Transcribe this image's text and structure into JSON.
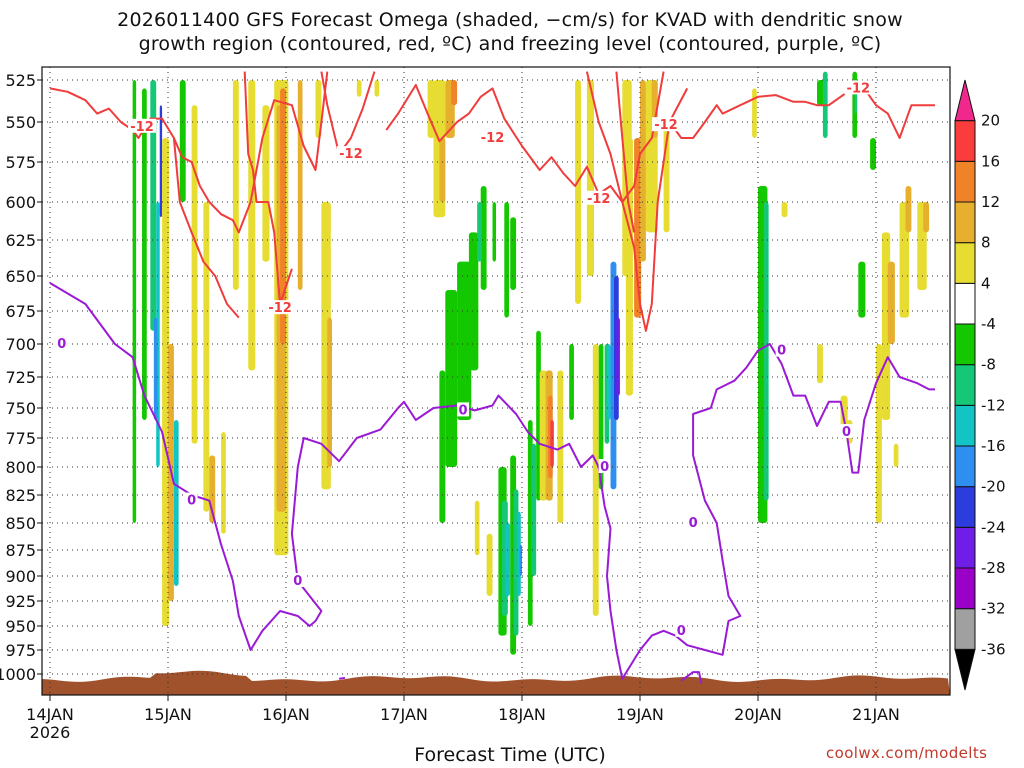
{
  "title_lines": [
    "2026011400 GFS Forecast Omega (shaded, −cm/s) for KVAD with dendritic snow",
    "growth region (contoured, red, ºC) and freezing level (contoured, purple, ºC)"
  ],
  "credit": "coolwx.com/modelts",
  "chart_data": {
    "type": "heatmap",
    "title": "2026011400 GFS Forecast Omega (shaded, −cm/s) for KVAD with dendritic snow growth region (contoured, red, ºC) and freezing level (contoured, purple, ºC)",
    "xlabel": "Forecast Time (UTC)",
    "ylabel": "",
    "x_ticks": [
      {
        "day": 0,
        "label": "14JAN",
        "label2": "2026"
      },
      {
        "day": 1,
        "label": "15JAN"
      },
      {
        "day": 2,
        "label": "16JAN"
      },
      {
        "day": 3,
        "label": "17JAN"
      },
      {
        "day": 4,
        "label": "18JAN"
      },
      {
        "day": 5,
        "label": "19JAN"
      },
      {
        "day": 6,
        "label": "20JAN"
      },
      {
        "day": 7,
        "label": "21JAN"
      }
    ],
    "xlim_days": [
      0,
      7.5
    ],
    "y_ticks": [
      525,
      550,
      575,
      600,
      625,
      650,
      675,
      700,
      725,
      750,
      775,
      800,
      825,
      850,
      875,
      900,
      925,
      950,
      975,
      1000
    ],
    "ylim_hpa": [
      515,
      1010
    ],
    "grid": true,
    "colorbar": {
      "levels": [
        -36,
        -32,
        -28,
        -24,
        -20,
        -16,
        -12,
        -8,
        -4,
        4,
        8,
        12,
        16,
        20
      ],
      "colors": [
        "#000000",
        "#a0a0a0",
        "#9a00c8",
        "#6e1ee6",
        "#2d3cdc",
        "#2f8ff0",
        "#14c4c4",
        "#14c878",
        "#14c800",
        "#ffffff",
        "#e6dc32",
        "#e6af2d",
        "#f08228",
        "#fa3c3c",
        "#f0288c"
      ]
    },
    "freezing_level": {
      "color": "#9a1ad6",
      "label": "0",
      "points": [
        [
          0,
          655
        ],
        [
          0.3,
          670
        ],
        [
          0.55,
          700
        ],
        [
          0.7,
          710
        ],
        [
          0.8,
          740
        ],
        [
          0.95,
          770
        ],
        [
          1.05,
          815
        ],
        [
          1.2,
          825
        ],
        [
          1.35,
          830
        ],
        [
          1.45,
          870
        ],
        [
          1.55,
          905
        ],
        [
          1.6,
          940
        ],
        [
          1.7,
          975
        ],
        [
          1.8,
          955
        ],
        [
          1.95,
          935
        ],
        [
          2.1,
          940
        ],
        [
          2.2,
          950
        ],
        [
          2.25,
          945
        ],
        [
          2.3,
          935
        ],
        [
          2.1,
          905
        ],
        [
          2.05,
          860
        ],
        [
          2.1,
          800
        ],
        [
          2.15,
          775
        ],
        [
          2.3,
          780
        ],
        [
          2.45,
          795
        ],
        [
          2.6,
          775
        ],
        [
          2.8,
          768
        ],
        [
          2.95,
          750
        ],
        [
          3.0,
          745
        ],
        [
          3.1,
          760
        ],
        [
          3.25,
          750
        ],
        [
          3.45,
          748
        ],
        [
          3.6,
          752
        ],
        [
          3.75,
          748
        ],
        [
          3.8,
          740
        ],
        [
          3.95,
          755
        ],
        [
          4.05,
          770
        ],
        [
          4.15,
          780
        ],
        [
          4.3,
          785
        ],
        [
          4.4,
          780
        ],
        [
          4.5,
          800
        ],
        [
          4.6,
          790
        ],
        [
          4.65,
          800
        ],
        [
          4.7,
          835
        ],
        [
          4.75,
          855
        ],
        [
          4.72,
          900
        ],
        [
          4.75,
          935
        ],
        [
          4.8,
          975
        ],
        [
          4.85,
          1005
        ],
        [
          4.95,
          985
        ],
        [
          5.0,
          975
        ],
        [
          5.1,
          960
        ],
        [
          5.2,
          955
        ],
        [
          5.3,
          960
        ],
        [
          5.4,
          970
        ],
        [
          5.55,
          975
        ],
        [
          5.7,
          980
        ],
        [
          5.75,
          945
        ],
        [
          5.85,
          940
        ],
        [
          5.75,
          920
        ],
        [
          5.7,
          885
        ],
        [
          5.65,
          850
        ],
        [
          5.55,
          830
        ],
        [
          5.45,
          790
        ],
        [
          5.45,
          755
        ],
        [
          5.6,
          750
        ],
        [
          5.65,
          735
        ],
        [
          5.8,
          728
        ],
        [
          5.9,
          718
        ],
        [
          6.0,
          705
        ],
        [
          6.1,
          700
        ],
        [
          6.2,
          715
        ],
        [
          6.3,
          740
        ],
        [
          6.4,
          740
        ],
        [
          6.5,
          765
        ],
        [
          6.6,
          745
        ],
        [
          6.7,
          745
        ],
        [
          6.75,
          770
        ],
        [
          6.8,
          805
        ],
        [
          6.85,
          805
        ],
        [
          6.9,
          760
        ],
        [
          7.0,
          730
        ],
        [
          7.1,
          710
        ],
        [
          7.2,
          725
        ],
        [
          7.35,
          730
        ],
        [
          7.45,
          735
        ],
        [
          7.5,
          735
        ]
      ],
      "extra_segments": [
        [
          [
            2.45,
            1005
          ],
          [
            2.5,
            1004
          ]
        ],
        [
          [
            5.35,
            1007
          ],
          [
            5.45,
            998
          ],
          [
            5.5,
            998
          ],
          [
            5.52,
            1010
          ]
        ]
      ],
      "labels_at": [
        [
          0.1,
          700
        ],
        [
          1.2,
          830
        ],
        [
          2.1,
          905
        ],
        [
          3.5,
          752
        ],
        [
          4.7,
          800
        ],
        [
          5.45,
          850
        ],
        [
          5.35,
          955
        ],
        [
          6.2,
          705
        ],
        [
          6.75,
          770
        ]
      ]
    },
    "dendritic_contour": {
      "color": "#f03c3c",
      "label": "-12",
      "segments": [
        [
          [
            0,
            530
          ],
          [
            0.15,
            532
          ],
          [
            0.3,
            537
          ],
          [
            0.4,
            545
          ],
          [
            0.5,
            542
          ],
          [
            0.6,
            550
          ],
          [
            0.7,
            555
          ],
          [
            0.75,
            560
          ],
          [
            0.85,
            548
          ],
          [
            0.95,
            548
          ],
          [
            1.05,
            560
          ],
          [
            1.12,
            572
          ],
          [
            1.2,
            575
          ],
          [
            1.27,
            590
          ],
          [
            1.35,
            600
          ],
          [
            1.45,
            608
          ],
          [
            1.55,
            612
          ],
          [
            1.6,
            620
          ],
          [
            1.7,
            600
          ],
          [
            1.8,
            560
          ],
          [
            1.9,
            537
          ],
          [
            2.05,
            540
          ],
          [
            2.15,
            565
          ],
          [
            2.25,
            580
          ],
          [
            2.3,
            550
          ],
          [
            2.35,
            520
          ]
        ],
        [
          [
            1.05,
            560
          ],
          [
            1.1,
            600
          ],
          [
            1.2,
            620
          ],
          [
            1.3,
            640
          ],
          [
            1.4,
            650
          ],
          [
            1.5,
            670
          ],
          [
            1.6,
            680
          ]
        ],
        [
          [
            1.65,
            520
          ],
          [
            1.68,
            570
          ],
          [
            1.72,
            580
          ],
          [
            1.75,
            600
          ],
          [
            1.85,
            600
          ],
          [
            1.9,
            620
          ],
          [
            1.95,
            670
          ],
          [
            2.05,
            645
          ]
        ],
        [
          [
            2.3,
            520
          ],
          [
            2.35,
            540
          ],
          [
            2.45,
            570
          ],
          [
            2.55,
            560
          ],
          [
            2.65,
            542
          ],
          [
            2.75,
            520
          ]
        ],
        [
          [
            2.85,
            555
          ],
          [
            2.95,
            545
          ],
          [
            3.1,
            528
          ],
          [
            3.2,
            545
          ],
          [
            3.3,
            562
          ],
          [
            3.45,
            550
          ],
          [
            3.55,
            545
          ],
          [
            3.65,
            535
          ],
          [
            3.75,
            530
          ],
          [
            3.85,
            548
          ],
          [
            4.0,
            565
          ],
          [
            4.15,
            580
          ],
          [
            4.25,
            572
          ],
          [
            4.35,
            582
          ],
          [
            4.45,
            590
          ],
          [
            4.55,
            578
          ],
          [
            4.65,
            595
          ],
          [
            4.75,
            590
          ],
          [
            4.85,
            600
          ],
          [
            4.95,
            590
          ],
          [
            5.0,
            570
          ],
          [
            5.1,
            560
          ],
          [
            5.2,
            520
          ]
        ],
        [
          [
            5.25,
            550
          ],
          [
            5.35,
            560
          ],
          [
            5.45,
            560
          ],
          [
            5.55,
            550
          ],
          [
            5.65,
            540
          ],
          [
            5.7,
            545
          ],
          [
            5.85,
            540
          ],
          [
            6.0,
            535
          ],
          [
            6.15,
            534
          ],
          [
            6.3,
            538
          ],
          [
            6.4,
            538
          ],
          [
            6.5,
            540
          ],
          [
            6.6,
            540
          ],
          [
            6.7,
            535
          ],
          [
            6.8,
            530
          ],
          [
            6.9,
            530
          ],
          [
            7.0,
            540
          ],
          [
            7.1,
            545
          ],
          [
            7.2,
            560
          ],
          [
            7.3,
            540
          ],
          [
            7.4,
            540
          ],
          [
            7.5,
            540
          ]
        ],
        [
          [
            4.55,
            520
          ],
          [
            4.65,
            550
          ],
          [
            4.75,
            570
          ],
          [
            4.85,
            600
          ],
          [
            4.95,
            630
          ],
          [
            5.0,
            670
          ],
          [
            5.05,
            690
          ],
          [
            5.1,
            670
          ],
          [
            5.15,
            600
          ],
          [
            5.25,
            550
          ],
          [
            5.4,
            530
          ]
        ],
        [
          [
            4.8,
            520
          ],
          [
            4.85,
            560
          ],
          [
            4.9,
            600
          ],
          [
            4.95,
            620
          ]
        ]
      ],
      "labels_at": [
        [
          0.78,
          553
        ],
        [
          1.95,
          673
        ],
        [
          2.55,
          570
        ],
        [
          3.75,
          560
        ],
        [
          4.65,
          598
        ],
        [
          5.22,
          552
        ],
        [
          6.85,
          530
        ]
      ]
    },
    "terrain": {
      "color": "#a0522d",
      "pressure_hpa": 1007
    }
  }
}
